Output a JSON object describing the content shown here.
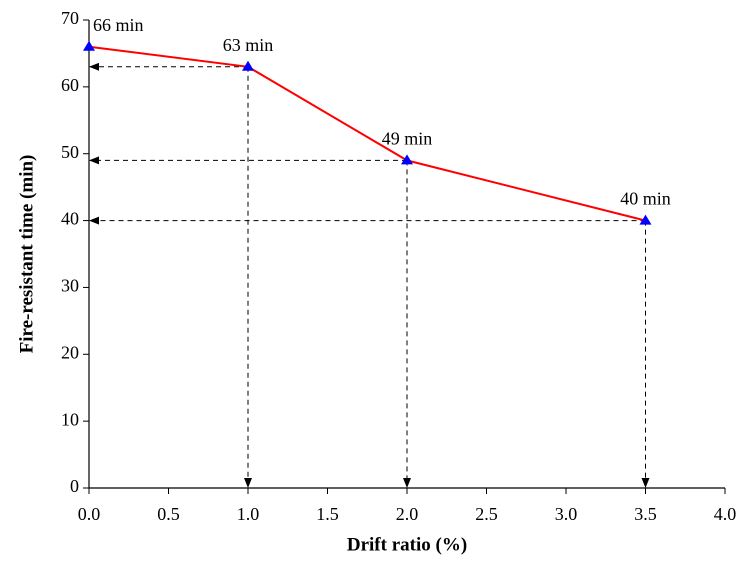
{
  "chart_data": {
    "type": "line",
    "x_label": "Drift ratio (%)",
    "y_label": "Fire-resistant time (min)",
    "x": [
      0,
      1,
      2,
      3.5
    ],
    "series": [
      {
        "color": "#ff0000",
        "marker_color": "#0000ff",
        "values": [
          66,
          63,
          49,
          40
        ],
        "value_labels": [
          "66 min",
          "63 min",
          "49 min",
          "40 min"
        ]
      }
    ],
    "xlim": [
      0,
      4
    ],
    "ylim": [
      0,
      70
    ],
    "xticks": [
      {
        "value": 0,
        "label": "0.0"
      },
      {
        "value": 0.5,
        "label": "0.5"
      },
      {
        "value": 1,
        "label": "1.0"
      },
      {
        "value": 1.5,
        "label": "1.5"
      },
      {
        "value": 2,
        "label": "2.0"
      },
      {
        "value": 2.5,
        "label": "2.5"
      },
      {
        "value": 3,
        "label": "3.0"
      },
      {
        "value": 3.5,
        "label": "3.5"
      },
      {
        "value": 4,
        "label": "4.0"
      }
    ],
    "yticks": [
      0,
      10,
      20,
      30,
      40,
      50,
      60,
      70
    ],
    "grid": false
  }
}
